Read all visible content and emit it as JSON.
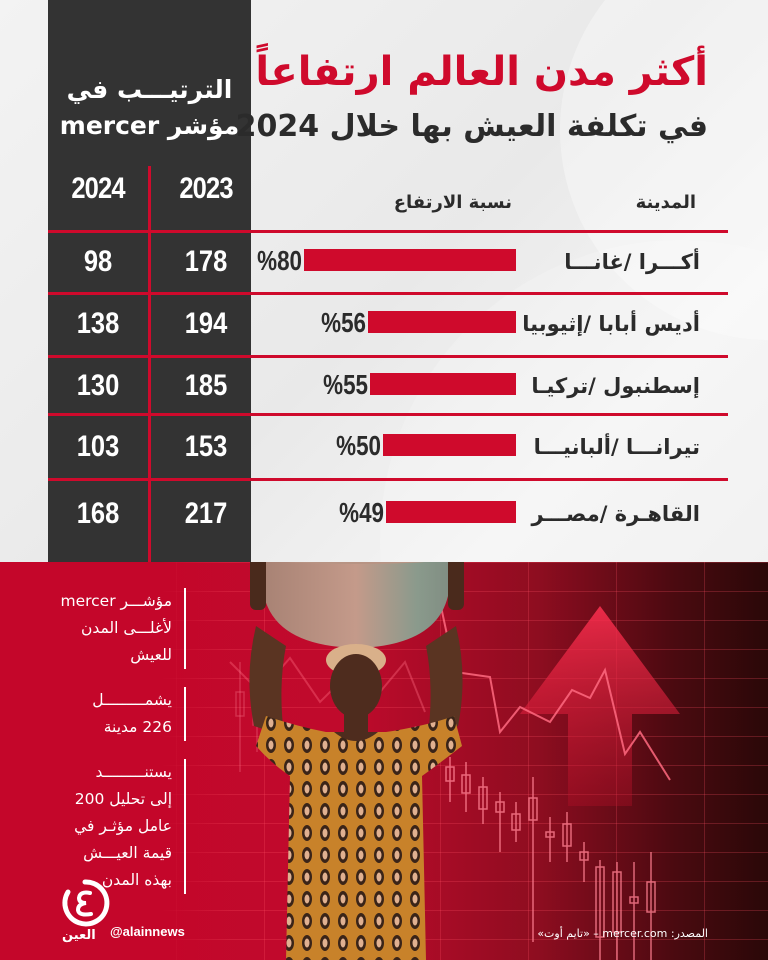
{
  "header": {
    "title": "أكثر مدن العالم ارتفاعاً",
    "subtitle": "في تكلفة العيش بها خلال 2024"
  },
  "ranking_panel": {
    "title_line1": "الترتيـــب في",
    "title_line2": "مؤشر mercer",
    "year_2023": "2023",
    "year_2024": "2024"
  },
  "table": {
    "col_city": "المدينة",
    "col_increase": "نسبة الارتفاع",
    "rows": [
      {
        "city": "أكـــرا /غانـــا",
        "pct": "%80",
        "pct_value": 80,
        "rank_2023": "178",
        "rank_2024": "98"
      },
      {
        "city": "أديس أبابا /إثيوبيا",
        "pct": "%56",
        "pct_value": 56,
        "rank_2023": "194",
        "rank_2024": "138"
      },
      {
        "city": "إسطنبول /تركيـا",
        "pct": "%55",
        "pct_value": 55,
        "rank_2023": "185",
        "rank_2024": "130"
      },
      {
        "city": "تيرانـــا /ألبانيـــا",
        "pct": "%50",
        "pct_value": 50,
        "rank_2023": "153",
        "rank_2024": "103"
      },
      {
        "city": "القاهـرة /مصـــر",
        "pct": "%49",
        "pct_value": 49,
        "rank_2023": "217",
        "rank_2024": "168"
      }
    ]
  },
  "facts": [
    {
      "line1": "مؤشـــر mercer",
      "line2": "لأغلـــى المدن",
      "line3": "للعيش"
    },
    {
      "line1": "يشمـــــــــل",
      "line2": "226 مدينة"
    },
    {
      "line1": "يستنـــــــــد",
      "line2": "إلى تحليل 200",
      "line3": "عامل مؤثـر في",
      "line4": "قيمة العيـــش",
      "line5": "بهذه المدن"
    }
  ],
  "footer": {
    "handle": "@alainnews",
    "logo_text": "العين",
    "source": "المصدر: mercer.com – «تايم أوت»"
  },
  "colors": {
    "accent_red": "#cf0a2c",
    "dark_panel": "#333333",
    "text_dark": "#2b2b2b"
  },
  "chart_data": {
    "type": "bar",
    "orientation": "horizontal",
    "title": "أكثر مدن العالم ارتفاعاً في تكلفة العيش بها خلال 2024",
    "xlabel": "نسبة الارتفاع",
    "ylabel": "المدينة",
    "categories": [
      "أكرا /غانا",
      "أديس أبابا /إثيوبيا",
      "إسطنبول /تركيا",
      "تيرانا /ألبانيا",
      "القاهرة /مصر"
    ],
    "values": [
      80,
      56,
      55,
      50,
      49
    ],
    "unit": "%",
    "table_series": [
      {
        "name": "الترتيب في مؤشر mercer 2023",
        "values": [
          178,
          194,
          185,
          153,
          217
        ]
      },
      {
        "name": "الترتيب في مؤشر mercer 2024",
        "values": [
          98,
          138,
          130,
          103,
          168
        ]
      }
    ]
  }
}
